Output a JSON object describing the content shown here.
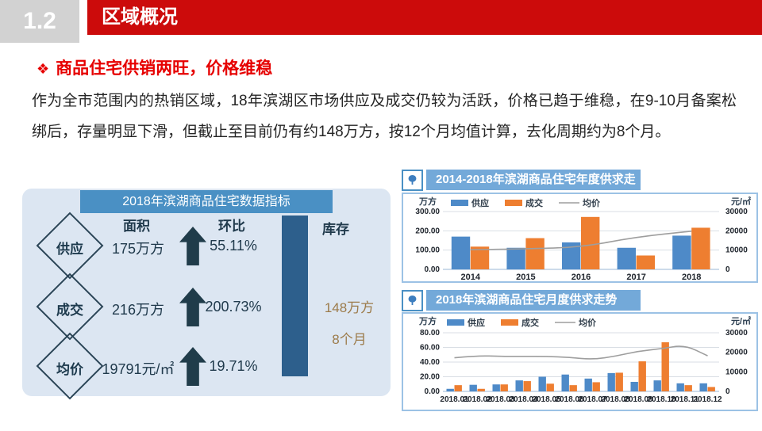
{
  "header": {
    "section_number": "1.2",
    "title": "区域概况"
  },
  "section": {
    "bullet": "❖",
    "title": "商品住宅供销两旺，价格维稳"
  },
  "body_text": "作为全市范围内的热销区域，18年滨湖区市场供应及成交仍较为活跃，价格已趋于维稳，在9-10月备案松绑后，存量明显下滑，但截止至目前仍有约148万方，按12个月均值计算，去化周期约为8个月。",
  "indicator_panel": {
    "title": "2018年滨湖商品住宅数据指标",
    "col_area": "面积",
    "col_mom": "环比",
    "rows": [
      {
        "label": "供应",
        "area": "175万方",
        "mom": "55.11%"
      },
      {
        "label": "成交",
        "area": "216万方",
        "mom": "200.73%"
      },
      {
        "label": "均价",
        "area": "19791元/㎡",
        "mom": "19.71%"
      }
    ],
    "stock": {
      "label": "库存",
      "value": "148万方",
      "months": "8个月"
    }
  },
  "colors": {
    "accent_red": "#cc0b0b",
    "panel_blue": "#4a90c4",
    "bar_blue": "#4e8ac8",
    "bar_orange": "#ee7e30",
    "line_gray": "#9e9e9e",
    "stock_gold": "#9c7b4a"
  },
  "chart_data": [
    {
      "type": "bar",
      "title": "2014-2018年滨湖商品住宅年度供求走势",
      "unit_left": "万方",
      "unit_right": "元/㎡",
      "categories": [
        "2014",
        "2015",
        "2016",
        "2017",
        "2018"
      ],
      "series": [
        {
          "name": "供应",
          "kind": "bar",
          "color": "#4e8ac8",
          "values": [
            170,
            112,
            140,
            112,
            175
          ]
        },
        {
          "name": "成交",
          "kind": "bar",
          "color": "#ee7e30",
          "values": [
            118,
            162,
            272,
            72,
            216
          ]
        },
        {
          "name": "均价",
          "kind": "line",
          "axis": "right",
          "color": "#9e9e9e",
          "values": [
            10200,
            10600,
            11500,
            16800,
            19800
          ]
        }
      ],
      "left_axis": {
        "min": 0,
        "max": 300,
        "ticks": [
          "0.00",
          "100.00",
          "200.00",
          "300.00"
        ]
      },
      "right_axis": {
        "min": 0,
        "max": 30000,
        "ticks": [
          "0",
          "10000",
          "20000",
          "30000"
        ]
      },
      "grid": true,
      "legend_position": "top"
    },
    {
      "type": "bar",
      "title": "2018年滨湖商品住宅月度供求走势",
      "unit_left": "万方",
      "unit_right": "元/㎡",
      "categories": [
        "2018.01",
        "2018.02",
        "2018.03",
        "2018.04",
        "2018.05",
        "2018.06",
        "2018.07",
        "2018.08",
        "2018.09",
        "2018.10",
        "2018.11",
        "2018.12"
      ],
      "series": [
        {
          "name": "供应",
          "kind": "bar",
          "color": "#4e8ac8",
          "values": [
            3.5,
            9,
            9.5,
            15,
            20,
            23,
            17.5,
            25,
            13,
            15,
            11,
            11
          ]
        },
        {
          "name": "成交",
          "kind": "bar",
          "color": "#ee7e30",
          "values": [
            8.5,
            3.5,
            9.5,
            14,
            10.5,
            8.5,
            12.5,
            25.5,
            41,
            67,
            8.5,
            6
          ]
        },
        {
          "name": "均价",
          "kind": "line",
          "axis": "right",
          "color": "#9e9e9e",
          "values": [
            17200,
            18300,
            17900,
            17900,
            17900,
            17400,
            16300,
            18000,
            20600,
            21800,
            23800,
            18200
          ]
        }
      ],
      "left_axis": {
        "min": 0,
        "max": 80,
        "ticks": [
          "0.00",
          "20.00",
          "40.00",
          "60.00",
          "80.00"
        ]
      },
      "right_axis": {
        "min": 0,
        "max": 30000,
        "ticks": [
          "0",
          "10000",
          "20000",
          "30000"
        ]
      },
      "grid": true,
      "legend_position": "top"
    }
  ]
}
